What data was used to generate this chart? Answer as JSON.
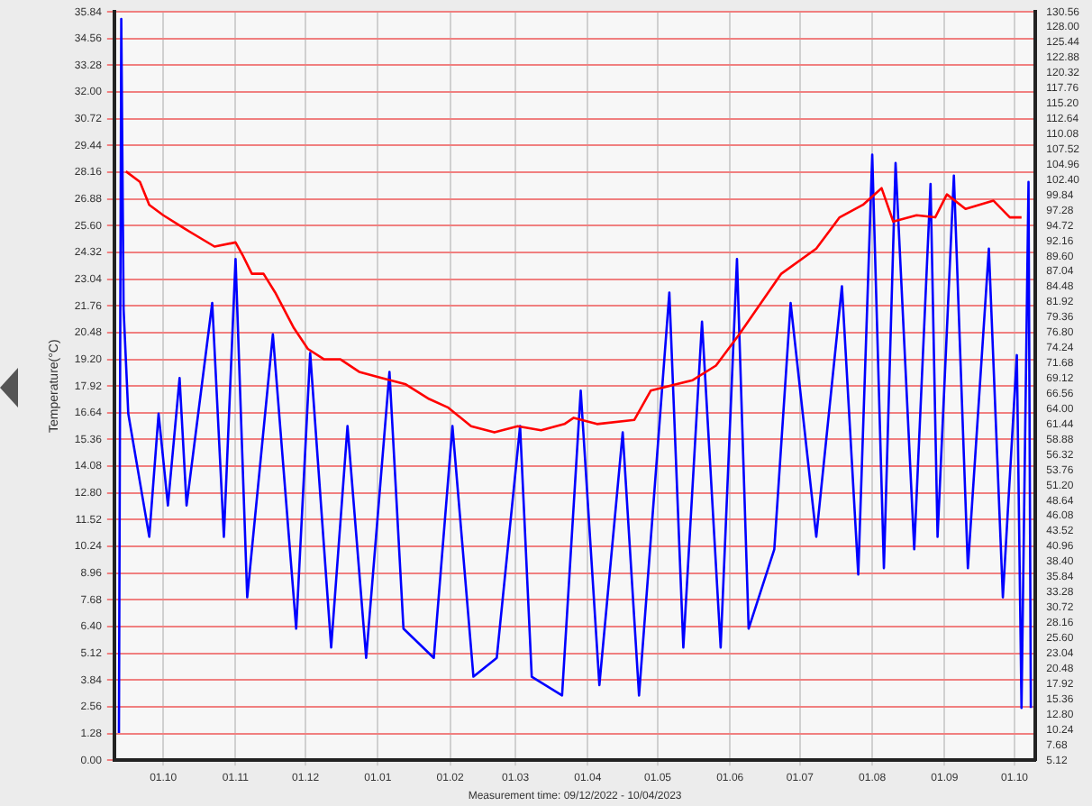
{
  "chart_data": {
    "type": "line",
    "ylabel": "Temperature(°C)",
    "xlabel": "Measurement time: 09/12/2022 - 10/04/2023",
    "grid": true,
    "legend": false,
    "marker": "none",
    "line_style": "solid",
    "xlim": [
      "2022-09-10",
      "2023-10-10"
    ],
    "xticks": [
      {
        "value": "2022-10-01",
        "label": "01.10"
      },
      {
        "value": "2022-11-01",
        "label": "01.11"
      },
      {
        "value": "2022-12-01",
        "label": "01.12"
      },
      {
        "value": "2023-01-01",
        "label": "01.01"
      },
      {
        "value": "2023-02-01",
        "label": "01.02"
      },
      {
        "value": "2023-03-01",
        "label": "01.03"
      },
      {
        "value": "2023-04-01",
        "label": "01.04"
      },
      {
        "value": "2023-05-01",
        "label": "01.05"
      },
      {
        "value": "2023-06-01",
        "label": "01.06"
      },
      {
        "value": "2023-07-01",
        "label": "01.07"
      },
      {
        "value": "2023-08-01",
        "label": "01.08"
      },
      {
        "value": "2023-09-01",
        "label": "01.09"
      },
      {
        "value": "2023-10-01",
        "label": "01.10"
      }
    ],
    "ylim": [
      0,
      35.84
    ],
    "yticks": [
      {
        "value": 0,
        "label": "0.00"
      },
      1.28,
      2.56,
      3.84,
      5.12,
      {
        "value": 6.4,
        "label": "6.40"
      },
      7.68,
      8.96,
      10.24,
      11.52,
      {
        "value": 12.8,
        "label": "12.80"
      },
      14.08,
      15.36,
      16.64,
      17.92,
      {
        "value": 19.2,
        "label": "19.20"
      },
      20.48,
      21.76,
      23.04,
      24.32,
      {
        "value": 25.6,
        "label": "25.60"
      },
      26.88,
      28.16,
      29.44,
      30.72,
      {
        "value": 32,
        "label": "32.00"
      },
      33.28,
      34.56,
      35.84
    ],
    "y2lim": [
      5.12,
      130.56
    ],
    "y2ticks": [
      5.12,
      7.68,
      10.24,
      {
        "value": 12.8,
        "label": "12.80"
      },
      15.36,
      17.92,
      20.48,
      23.04,
      {
        "value": 25.6,
        "label": "25.60"
      },
      28.16,
      30.72,
      33.28,
      35.84,
      {
        "value": 38.4,
        "label": "38.40"
      },
      40.96,
      43.52,
      46.08,
      48.64,
      {
        "value": 51.2,
        "label": "51.20"
      },
      53.76,
      56.32,
      58.88,
      61.44,
      {
        "value": 64,
        "label": "64.00"
      },
      66.56,
      69.12,
      71.68,
      74.24,
      {
        "value": 76.8,
        "label": "76.80"
      },
      79.36,
      81.92,
      84.48,
      87.04,
      {
        "value": 89.6,
        "label": "89.60"
      },
      92.16,
      94.72,
      97.28,
      99.84,
      {
        "value": 102.4,
        "label": "102.40"
      },
      104.96,
      107.52,
      110.08,
      112.64,
      {
        "value": 115.2,
        "label": "115.20"
      },
      117.76,
      120.32,
      122.88,
      125.44,
      {
        "value": 128,
        "label": "128.00"
      },
      130.56
    ],
    "series": [
      {
        "color": "#ff0000",
        "x": [
          "2022-09-15",
          "2022-09-21",
          "2022-09-25",
          "2022-10-01",
          "2022-10-11",
          "2022-10-23",
          "2022-11-01",
          "2022-11-04",
          "2022-11-08",
          "2022-11-13",
          "2022-11-18",
          "2022-11-26",
          "2022-12-02",
          "2022-12-09",
          "2022-12-16",
          "2022-12-24",
          "2023-01-03",
          "2023-01-13",
          "2023-01-23",
          "2023-01-31",
          "2023-02-10",
          "2023-02-20",
          "2023-03-02",
          "2023-03-12",
          "2023-03-22",
          "2023-03-26",
          "2023-04-05",
          "2023-04-21",
          "2023-04-28",
          "2023-05-16",
          "2023-05-26",
          "2023-06-05",
          "2023-06-23",
          "2023-07-08",
          "2023-07-18",
          "2023-07-28",
          "2023-08-05",
          "2023-08-10",
          "2023-08-20",
          "2023-08-28",
          "2023-09-02",
          "2023-09-10",
          "2023-09-22",
          "2023-09-29",
          "2023-10-04"
        ],
        "values": [
          28.2,
          27.7,
          26.6,
          26.1,
          25.4,
          24.6,
          24.8,
          24.2,
          23.3,
          23.3,
          22.4,
          20.7,
          19.7,
          19.2,
          19.2,
          18.6,
          18.3,
          18,
          17.3,
          16.9,
          16,
          15.7,
          16,
          15.8,
          16.1,
          16.4,
          16.1,
          16.3,
          17.7,
          18.2,
          18.9,
          20.4,
          23.3,
          24.5,
          26,
          26.6,
          27.4,
          25.8,
          26.1,
          26,
          27.1,
          26.4,
          26.8,
          26,
          26
        ]
      },
      {
        "color": "#0000ff",
        "x": [
          "2022-09-12",
          "2022-09-13",
          "2022-09-14",
          "2022-09-16",
          "2022-09-25",
          "2022-09-29",
          "2022-10-03",
          "2022-10-08",
          "2022-10-11",
          "2022-10-22",
          "2022-10-27",
          "2022-11-01",
          "2022-11-06",
          "2022-11-17",
          "2022-11-27",
          "2022-12-03",
          "2022-12-12",
          "2022-12-19",
          "2022-12-27",
          "2023-01-06",
          "2023-01-12",
          "2023-01-25",
          "2023-02-02",
          "2023-02-11",
          "2023-02-21",
          "2023-03-03",
          "2023-03-08",
          "2023-03-21",
          "2023-03-29",
          "2023-04-06",
          "2023-04-16",
          "2023-04-23",
          "2023-05-06",
          "2023-05-12",
          "2023-05-20",
          "2023-05-28",
          "2023-06-04",
          "2023-06-09",
          "2023-06-20",
          "2023-06-27",
          "2023-07-08",
          "2023-07-19",
          "2023-07-26",
          "2023-08-01",
          "2023-08-06",
          "2023-08-11",
          "2023-08-19",
          "2023-08-26",
          "2023-08-29",
          "2023-09-05",
          "2023-09-11",
          "2023-09-20",
          "2023-09-26",
          "2023-10-02",
          "2023-10-04",
          "2023-10-07",
          "2023-10-08"
        ],
        "values": [
          1.3,
          35.5,
          21.6,
          16.6,
          10.7,
          16.6,
          12.2,
          18.3,
          12.2,
          21.9,
          10.7,
          24,
          7.8,
          20.4,
          6.3,
          19.5,
          5.4,
          16,
          4.9,
          18.6,
          6.3,
          4.9,
          16,
          4,
          4.9,
          16,
          4,
          3.1,
          17.7,
          3.6,
          15.7,
          3.1,
          22.4,
          5.4,
          21,
          5.4,
          24,
          6.3,
          10.1,
          21.9,
          10.7,
          22.7,
          8.9,
          29,
          9.2,
          28.6,
          10.1,
          27.6,
          10.7,
          28,
          9.2,
          24.5,
          7.8,
          19.4,
          2.5,
          27.7,
          2.5
        ]
      }
    ]
  }
}
